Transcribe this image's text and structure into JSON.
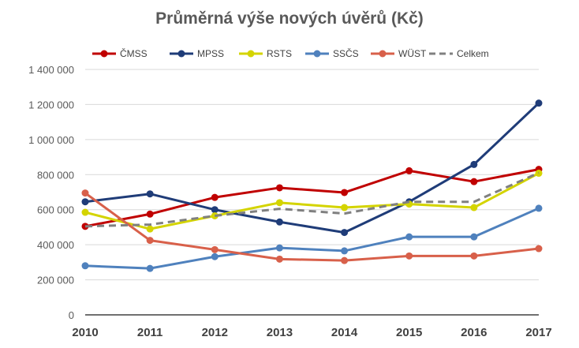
{
  "chart_data": {
    "type": "line",
    "title": "Průměrná výše nových úvěrů (Kč)",
    "xlabel": "",
    "ylabel": "",
    "categories": [
      "2010",
      "2011",
      "2012",
      "2013",
      "2014",
      "2015",
      "2016",
      "2017"
    ],
    "ylim": [
      0,
      1400000
    ],
    "yticks": [
      0,
      200000,
      400000,
      600000,
      800000,
      1000000,
      1200000,
      1400000
    ],
    "ytick_labels": [
      "0",
      "200 000",
      "400 000",
      "600 000",
      "800 000",
      "1 000 000",
      "1 200 000",
      "1 400 000"
    ],
    "grid": true,
    "legend_position": "top",
    "series": [
      {
        "name": "ČMSS",
        "color": "#C00000",
        "dashed": false,
        "markers": true,
        "values": [
          505000,
          575000,
          670000,
          725000,
          698000,
          822000,
          760000,
          830000
        ]
      },
      {
        "name": "MPSS",
        "color": "#1F3C78",
        "dashed": false,
        "markers": true,
        "values": [
          645000,
          690000,
          600000,
          530000,
          470000,
          645000,
          858000,
          1208000
        ]
      },
      {
        "name": "RSTS",
        "color": "#D4D400",
        "dashed": false,
        "markers": true,
        "values": [
          585000,
          490000,
          565000,
          640000,
          612000,
          632000,
          612000,
          808000
        ]
      },
      {
        "name": "SSČS",
        "color": "#4F81BD",
        "dashed": false,
        "markers": true,
        "values": [
          280000,
          265000,
          332000,
          382000,
          365000,
          445000,
          445000,
          608000
        ]
      },
      {
        "name": "WÜST",
        "color": "#D8604A",
        "dashed": false,
        "markers": true,
        "values": [
          695000,
          425000,
          372000,
          318000,
          310000,
          336000,
          336000,
          378000
        ]
      },
      {
        "name": "Celkem",
        "color": "#808080",
        "dashed": true,
        "markers": false,
        "values": [
          505000,
          515000,
          565000,
          605000,
          578000,
          645000,
          645000,
          810000
        ]
      }
    ]
  }
}
